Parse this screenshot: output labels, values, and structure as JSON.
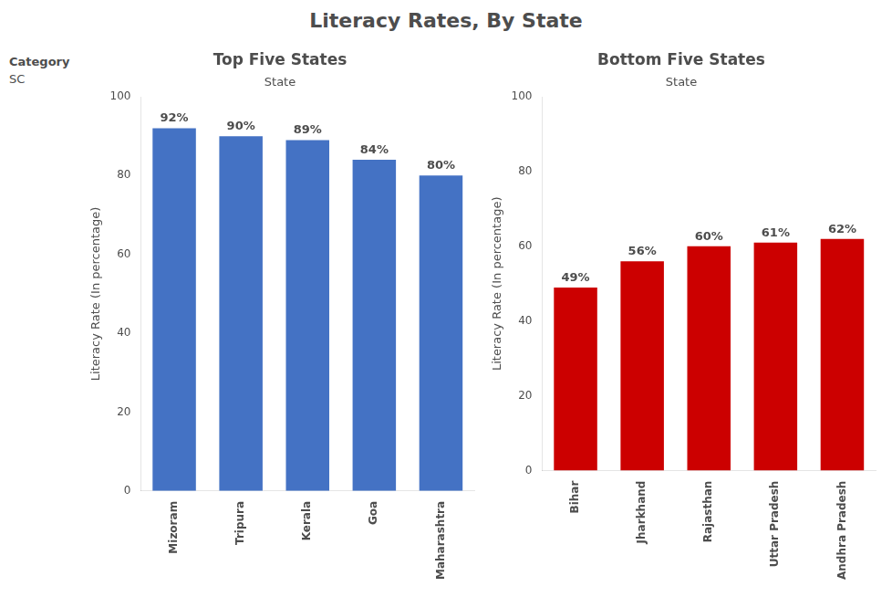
{
  "title": "Literacy Rates, By State",
  "annotations": [
    "Category",
    "SC"
  ],
  "chart_data": [
    {
      "type": "bar",
      "title": "Top Five States",
      "xlabel": "State",
      "ylabel": "Literacy Rate (In percentage)",
      "categories": [
        "Mizoram",
        "Tripura",
        "Kerala",
        "Goa",
        "Maharashtra"
      ],
      "values": [
        92,
        90,
        89,
        84,
        80
      ],
      "value_labels": [
        "92%",
        "90%",
        "89%",
        "84%",
        "80%"
      ],
      "color": "#4472C4",
      "ylim": [
        0,
        100
      ],
      "yticks": [
        0,
        20,
        40,
        60,
        80,
        100
      ],
      "grid": false,
      "data_labels": true
    },
    {
      "type": "bar",
      "title": "Bottom Five States",
      "xlabel": "State",
      "ylabel": "Literacy Rate (In percentage)",
      "categories": [
        "Bihar",
        "Jharkhand",
        "Rajasthan",
        "Uttar Pradesh",
        "Andhra Pradesh"
      ],
      "values": [
        49,
        56,
        60,
        61,
        62
      ],
      "value_labels": [
        "49%",
        "56%",
        "60%",
        "61%",
        "62%"
      ],
      "color": "#CC0000",
      "ylim": [
        0,
        100
      ],
      "yticks": [
        0,
        20,
        40,
        60,
        80,
        100
      ],
      "grid": false,
      "data_labels": true
    }
  ]
}
